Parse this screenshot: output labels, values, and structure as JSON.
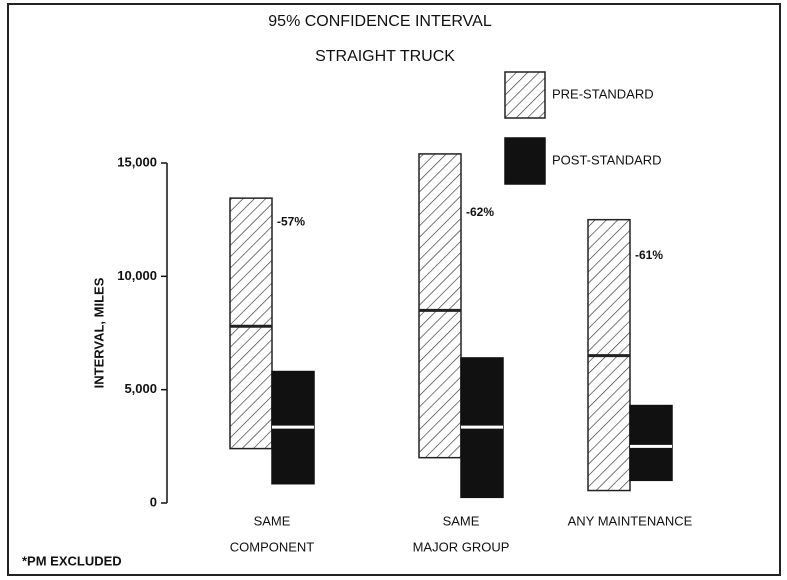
{
  "chart_data": {
    "type": "range_bar",
    "title": "95% CONFIDENCE INTERVAL",
    "subtitle": "STRAIGHT TRUCK",
    "y_label": "INTERVAL, MILES",
    "footnote": "*PM EXCLUDED",
    "categories": [
      [
        "SAME",
        "COMPONENT"
      ],
      [
        "SAME",
        "MAJOR GROUP"
      ],
      [
        "ANY MAINTENANCE"
      ]
    ],
    "series": [
      {
        "name": "PRE-STANDARD",
        "color": "#222222",
        "pattern": "hatch",
        "low": [
          2400,
          2000,
          550
        ],
        "mid": [
          7800,
          8500,
          6500
        ],
        "high": [
          13450,
          15400,
          12500
        ]
      },
      {
        "name": "POST-STANDARD",
        "color": "#111111",
        "pattern": "solid",
        "low": [
          850,
          250,
          1000
        ],
        "mid": [
          3350,
          3350,
          2500
        ],
        "high": [
          5800,
          6400,
          4300
        ]
      }
    ],
    "annotations": [
      "-57%",
      "-62%",
      "-61%"
    ],
    "ylim": [
      0,
      15000
    ],
    "yticks": [
      0,
      {
        "value": 5000,
        "label": "5,000"
      },
      {
        "value": 10000,
        "label": "10,000"
      },
      {
        "value": 15000,
        "label": "15,000"
      }
    ]
  }
}
